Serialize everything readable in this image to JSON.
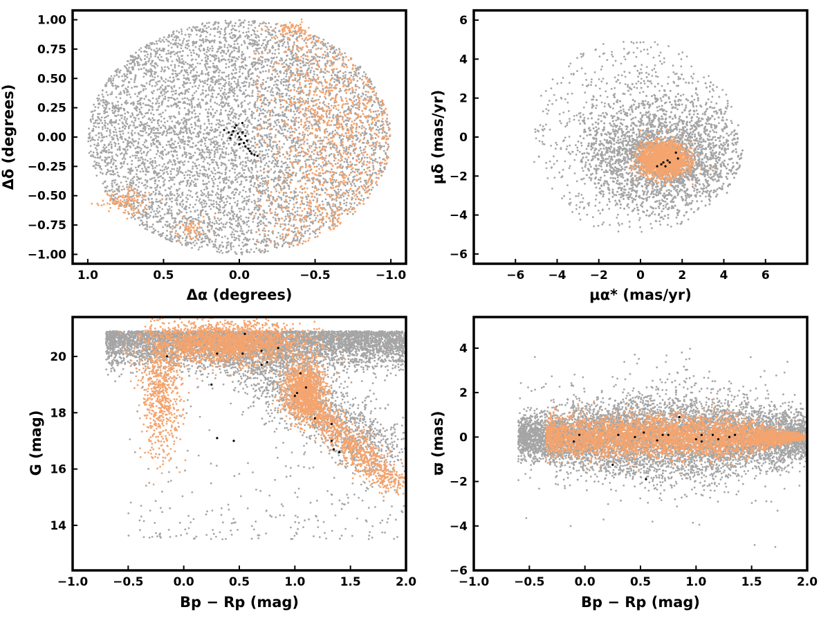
{
  "colors": {
    "background": "#d4d4d4",
    "members": "#f4a46e",
    "highlight": "#000000",
    "frame": "#000000"
  },
  "chart_data": [
    {
      "type": "scatter",
      "panel": "top-left",
      "xlabel": "Δα (degrees)",
      "ylabel": "Δδ (degrees)",
      "xlim": [
        1.1,
        -1.1
      ],
      "ylim": [
        -1.08,
        1.08
      ],
      "xticks": [
        1.0,
        0.5,
        0.0,
        -0.5,
        -1.0
      ],
      "xtick_labels": [
        "1.0",
        "0.5",
        "0.0",
        "−0.5",
        "−1.0"
      ],
      "yticks": [
        1.0,
        0.75,
        0.5,
        0.25,
        0.0,
        -0.25,
        -0.5,
        -0.75,
        -1.0
      ],
      "ytick_labels": [
        "1.00",
        "0.75",
        "0.50",
        "0.25",
        "0.00",
        "−0.25",
        "−0.50",
        "−0.75",
        "−1.00"
      ],
      "series": [
        {
          "color": "#a5a5a5",
          "description": "field stars filling a disk of radius ~1 deg",
          "approx_count": 9000
        },
        {
          "color": "#f4a46e",
          "description": "stars concentrated toward negative Δα (−0.3 to −1.0)",
          "approx_count": 6000
        },
        {
          "color": "#000000",
          "points": [
            [
              0.1,
              0.06
            ],
            [
              0.07,
              0.04
            ],
            [
              0.05,
              0.02
            ],
            [
              0.04,
              0.05
            ],
            [
              0.03,
              0.08
            ],
            [
              0.02,
              0.1
            ],
            [
              0.01,
              0.03
            ],
            [
              0.0,
              0.0
            ],
            [
              -0.01,
              -0.02
            ],
            [
              -0.02,
              0.04
            ],
            [
              -0.03,
              -0.05
            ],
            [
              -0.04,
              -0.08
            ],
            [
              -0.05,
              -0.03
            ],
            [
              -0.06,
              -0.1
            ],
            [
              -0.07,
              -0.12
            ],
            [
              -0.08,
              -0.14
            ],
            [
              -0.1,
              -0.15
            ],
            [
              -0.12,
              -0.16
            ],
            [
              0.06,
              -0.01
            ],
            [
              -0.02,
              0.12
            ],
            [
              0.0,
              -0.06
            ],
            [
              -0.04,
              0.01
            ]
          ]
        }
      ]
    },
    {
      "type": "scatter",
      "panel": "top-right",
      "xlabel": "μα* (mas/yr)",
      "ylabel": "μδ (mas/yr)",
      "xlim": [
        -8,
        8
      ],
      "ylim": [
        -6.5,
        6.5
      ],
      "xticks": [
        -6,
        -4,
        -2,
        0,
        2,
        4,
        6
      ],
      "xtick_labels": [
        "−6",
        "−4",
        "−2",
        "0",
        "2",
        "4",
        "6"
      ],
      "yticks": [
        6,
        4,
        2,
        0,
        -2,
        -4,
        -6
      ],
      "ytick_labels": [
        "6",
        "4",
        "2",
        "0",
        "−2",
        "−4",
        "−6"
      ],
      "series": [
        {
          "color": "#a5a5a5",
          "description": "field stars in a disk centred near (1, 0) with radius ~4.8 mas/yr, denser toward the centre",
          "approx_count": 9000
        },
        {
          "color": "#f4a46e",
          "description": "compact cluster centred near (1.0, −1.1)",
          "approx_count": 2500
        },
        {
          "color": "#000000",
          "points": [
            [
              0.8,
              -1.5
            ],
            [
              1.0,
              -1.4
            ],
            [
              1.1,
              -1.3
            ],
            [
              1.3,
              -1.2
            ],
            [
              1.4,
              -1.3
            ],
            [
              1.7,
              -0.8
            ],
            [
              1.8,
              -1.1
            ],
            [
              1.2,
              -1.5
            ]
          ]
        }
      ]
    },
    {
      "type": "scatter",
      "panel": "bottom-left",
      "xlabel": "Bp − Rp (mag)",
      "ylabel": "G (mag)",
      "xlim": [
        -1.0,
        2.0
      ],
      "ylim": [
        12.4,
        21.4
      ],
      "y_inverted": false,
      "xticks": [
        -1.0,
        -0.5,
        0.0,
        0.5,
        1.0,
        1.5,
        2.0
      ],
      "xtick_labels": [
        "−1.0",
        "−0.5",
        "0.0",
        "0.5",
        "1.0",
        "1.5",
        "2.0"
      ],
      "yticks": [
        20,
        18,
        16,
        14
      ],
      "ytick_labels": [
        "20",
        "18",
        "16",
        "14"
      ],
      "series": [
        {
          "color": "#a5a5a5",
          "description": "field stars, dense band at G 19.5–21 across colour 0–2",
          "approx_count": 7000
        },
        {
          "color": "#f4a46e",
          "description": "blue plume near colour −0.2 and red sequence from (1.0, 19) down to (1.9, 15.5)",
          "approx_count": 4500
        },
        {
          "color": "#000000",
          "points": [
            [
              -0.15,
              20.0
            ],
            [
              0.3,
              20.1
            ],
            [
              0.53,
              20.1
            ],
            [
              0.7,
              20.2
            ],
            [
              0.85,
              20.3
            ],
            [
              1.05,
              19.4
            ],
            [
              1.1,
              18.9
            ],
            [
              1.02,
              18.7
            ],
            [
              1.0,
              18.6
            ],
            [
              1.18,
              17.8
            ],
            [
              1.33,
              17.6
            ],
            [
              1.33,
              17.0
            ],
            [
              1.35,
              16.7
            ],
            [
              1.4,
              16.6
            ],
            [
              0.3,
              17.1
            ],
            [
              0.45,
              17.0
            ],
            [
              0.55,
              20.8
            ],
            [
              0.75,
              19.8
            ],
            [
              0.25,
              19.0
            ],
            [
              0.7,
              19.7
            ]
          ]
        }
      ]
    },
    {
      "type": "scatter",
      "panel": "bottom-right",
      "xlabel": "Bp − Rp (mag)",
      "ylabel": "ϖ (mas)",
      "xlim": [
        -1.0,
        2.0
      ],
      "ylim": [
        -6.0,
        5.4
      ],
      "xticks": [
        -1.0,
        -0.5,
        0.0,
        0.5,
        1.0,
        1.5,
        2.0
      ],
      "xtick_labels": [
        "−1.0",
        "−0.5",
        "0.0",
        "0.5",
        "1.0",
        "1.5",
        "2.0"
      ],
      "yticks": [
        4,
        2,
        0,
        -2,
        -4,
        -6
      ],
      "ytick_labels": [
        "4",
        "2",
        "0",
        "−2",
        "−4",
        "−6"
      ],
      "series": [
        {
          "color": "#a5a5a5",
          "description": "field stars, horizontal band around 0 with spread ~1.5 mas",
          "approx_count": 8000
        },
        {
          "color": "#f4a46e",
          "description": "tighter band around 0, narrowing toward red colours up to 2.0",
          "approx_count": 5000
        },
        {
          "color": "#000000",
          "points": [
            [
              -0.1,
              -0.2
            ],
            [
              0.3,
              0.1
            ],
            [
              0.45,
              0.0
            ],
            [
              0.53,
              0.2
            ],
            [
              0.7,
              0.1
            ],
            [
              0.75,
              0.1
            ],
            [
              0.25,
              -1.25
            ],
            [
              0.55,
              -1.9
            ],
            [
              0.85,
              0.9
            ],
            [
              1.0,
              -0.1
            ],
            [
              1.05,
              0.1
            ],
            [
              1.15,
              0.1
            ],
            [
              1.2,
              -0.1
            ],
            [
              1.3,
              0.0
            ],
            [
              1.35,
              0.1
            ],
            [
              1.05,
              -0.2
            ],
            [
              0.65,
              -0.15
            ],
            [
              -0.05,
              0.1
            ]
          ]
        }
      ]
    }
  ]
}
